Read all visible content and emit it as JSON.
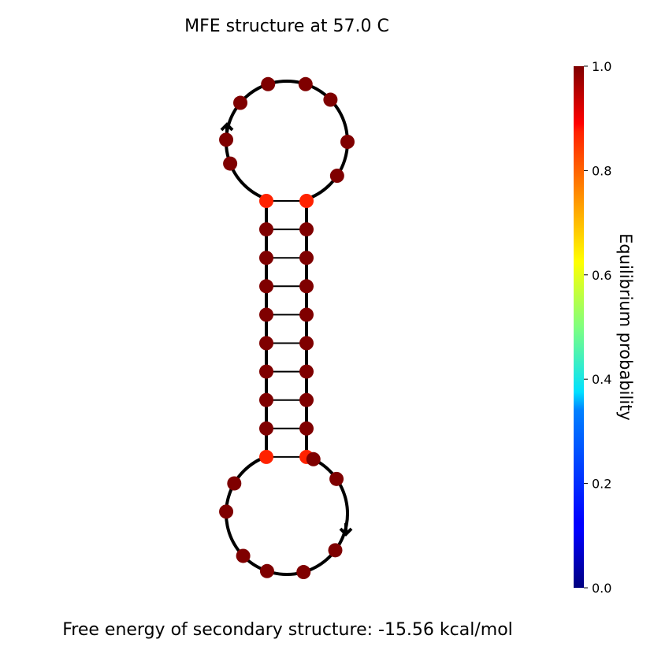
{
  "title": "MFE structure at 57.0 C",
  "footer": "Free energy of secondary structure: -15.56 kcal/mol",
  "colorbar": {
    "label": "Equilibrium probability",
    "colormap": "jet",
    "range": [
      0.0,
      1.0
    ],
    "ticks": [
      "0.0",
      "0.2",
      "0.4",
      "0.6",
      "0.8",
      "1.0"
    ]
  },
  "structure": {
    "strand_count": 1,
    "nucleotide_count": 38,
    "stem_base_pairs": 10,
    "loop_nucleotides_each": 9,
    "base_pair_probabilities": [
      0.93,
      0.995,
      0.995,
      0.995,
      0.995,
      0.995,
      0.995,
      0.995,
      0.995,
      0.93
    ],
    "loop_probability": 0.995,
    "colors": {
      "high_probability": "#7f0000",
      "terminal_pair": "#ff2200",
      "backbone": "#000000"
    }
  }
}
